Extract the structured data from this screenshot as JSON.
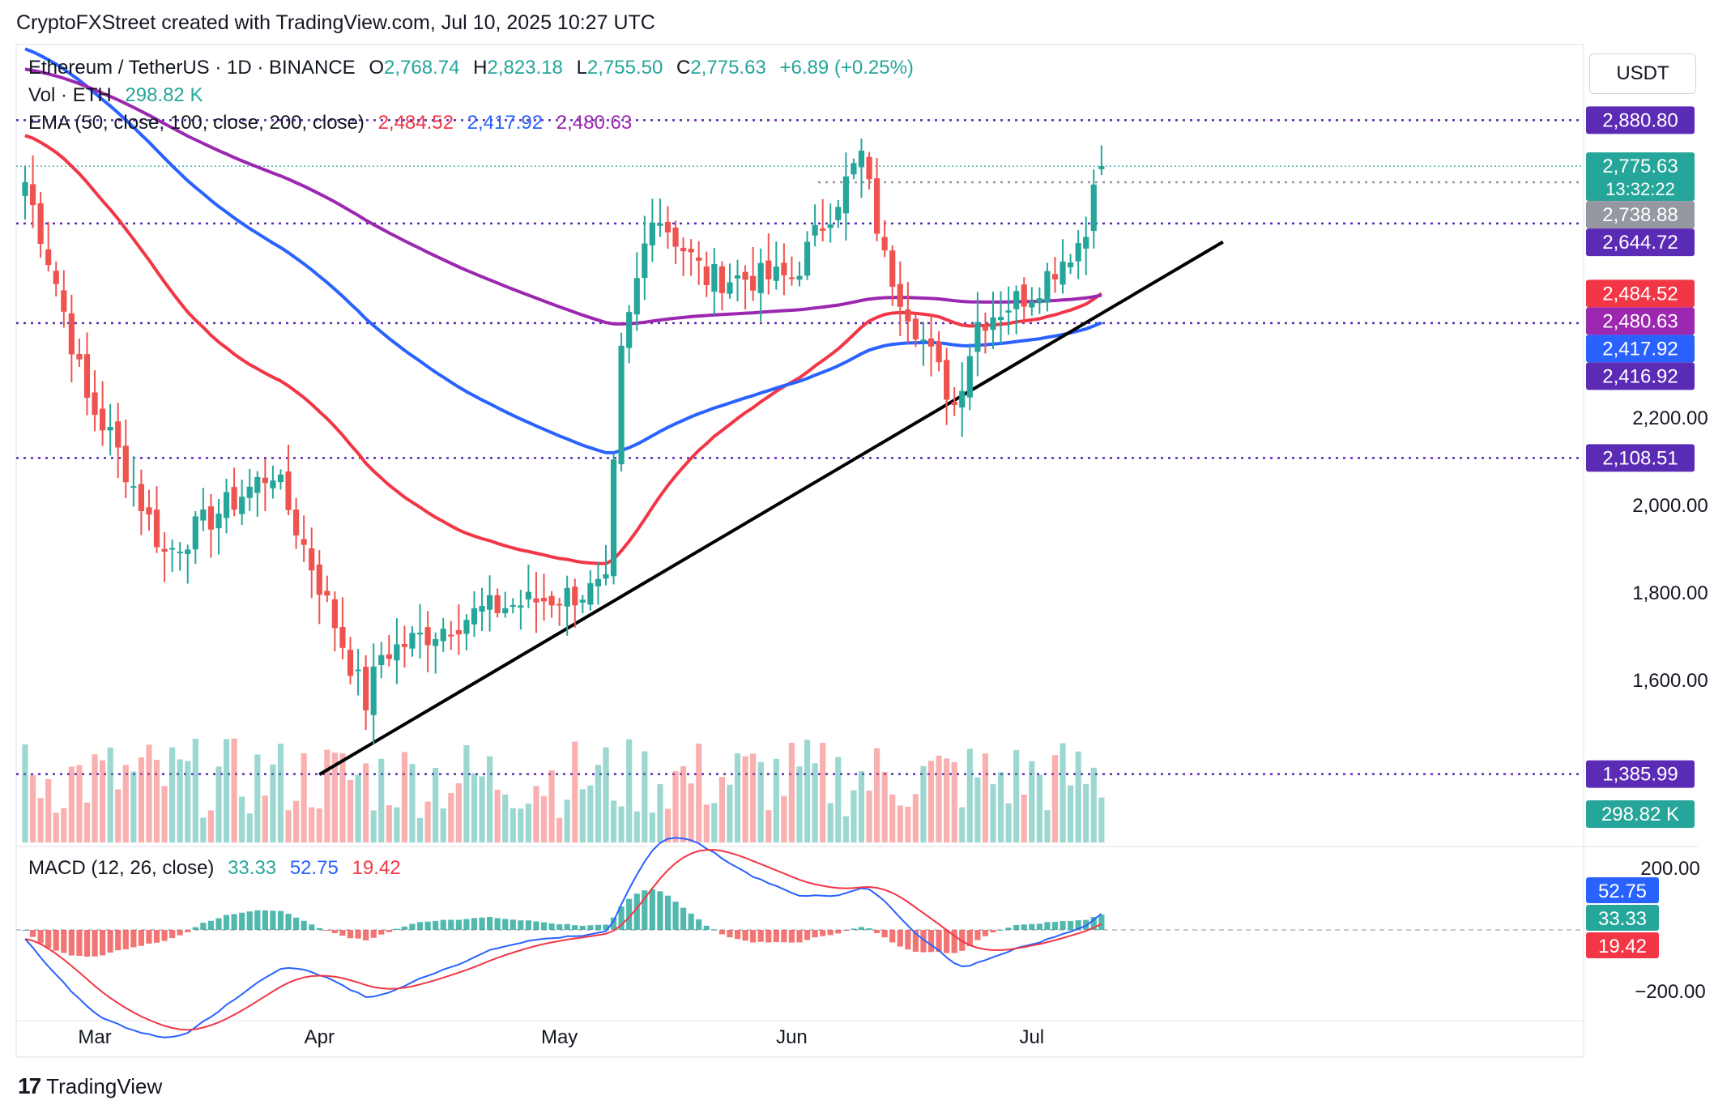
{
  "header": {
    "caption": "CryptoFXStreet created with TradingView.com, Jul 10, 2025 10:27 UTC"
  },
  "legend": {
    "symbol": "Ethereum / TetherUS · 1D · BINANCE",
    "o_label": "O",
    "o_value": "2,768.74",
    "h_label": "H",
    "h_value": "2,823.18",
    "l_label": "L",
    "l_value": "2,755.50",
    "c_label": "C",
    "c_value": "2,775.63",
    "change": "+6.89 (+0.25%)",
    "vol_label": "Vol · ETH",
    "vol_value": "298.82 K",
    "ema_label": "EMA (50, close, 100, close, 200, close)",
    "ema50_value": "2,484.52",
    "ema100_value": "2,417.92",
    "ema200_value": "2,480.63"
  },
  "macd_legend": {
    "label": "MACD (12, 26, close)",
    "hist": "33.33",
    "macd": "52.75",
    "signal": "19.42"
  },
  "unit": "USDT",
  "footer": {
    "brand": "TradingView",
    "logo": "17"
  },
  "colors": {
    "up": "#26a69a",
    "down": "#ef5350",
    "ema50": "#f23645",
    "ema100": "#2962ff",
    "ema200": "#9c27b0",
    "level": "#5b2bb5",
    "trend": "#000000"
  },
  "chart_data": {
    "type": "candlestick",
    "symbol": "ETH/USDT",
    "timeframe": "1D",
    "y_ticks": [
      "2,200.00",
      "2,000.00",
      "1,800.00",
      "1,600.00"
    ],
    "x_ticks": [
      "Mar",
      "Apr",
      "May",
      "Jun",
      "Jul"
    ],
    "price_labels": [
      {
        "value": "2,880.80",
        "kind": "level"
      },
      {
        "value": "2,775.63",
        "kind": "last",
        "sub": "13:32:22"
      },
      {
        "value": "2,738.88",
        "kind": "prior"
      },
      {
        "value": "2,644.72",
        "kind": "level"
      },
      {
        "value": "2,484.52",
        "kind": "ema50"
      },
      {
        "value": "2,480.63",
        "kind": "ema200"
      },
      {
        "value": "2,417.92",
        "kind": "ema100"
      },
      {
        "value": "2,416.92",
        "kind": "level"
      },
      {
        "value": "2,108.51",
        "kind": "level"
      },
      {
        "value": "1,385.99",
        "kind": "level"
      },
      {
        "value": "298.82 K",
        "kind": "volume"
      }
    ],
    "horizontal_levels": [
      2880.8,
      2644.72,
      2416.92,
      2108.51,
      1385.99
    ],
    "trendline": [
      {
        "date": "Apr 1",
        "price": 1385
      },
      {
        "date": "Jul 10",
        "price": 2510
      }
    ],
    "ohlc_anchors": [
      {
        "date": "Feb 20",
        "close": 2740
      },
      {
        "date": "Feb 24",
        "close": 2510
      },
      {
        "date": "Feb 28",
        "close": 2240
      },
      {
        "date": "Mar 3",
        "close": 2160
      },
      {
        "date": "Mar 10",
        "close": 1890
      },
      {
        "date": "Mar 24",
        "close": 2080
      },
      {
        "date": "Apr 1",
        "close": 1820
      },
      {
        "date": "Apr 7",
        "close": 1550
      },
      {
        "date": "Apr 9",
        "close": 1660
      },
      {
        "date": "Apr 22",
        "close": 1760
      },
      {
        "date": "May 7",
        "close": 1810
      },
      {
        "date": "May 9",
        "close": 2340
      },
      {
        "date": "May 13",
        "close": 2680
      },
      {
        "date": "May 20",
        "close": 2520
      },
      {
        "date": "Jun 1",
        "close": 2520
      },
      {
        "date": "Jun 10",
        "close": 2800
      },
      {
        "date": "Jun 13",
        "close": 2560
      },
      {
        "date": "Jun 22",
        "close": 2230
      },
      {
        "date": "Jun 25",
        "close": 2420
      },
      {
        "date": "Jul 1",
        "close": 2490
      },
      {
        "date": "Jul 8",
        "close": 2620
      },
      {
        "date": "Jul 9",
        "close": 2768
      },
      {
        "date": "Jul 10",
        "close": 2775.63
      }
    ],
    "ema": {
      "ema50_last": 2484.52,
      "ema100_last": 2417.92,
      "ema200_last": 2480.63
    },
    "macd": {
      "y_ticks": [
        "200.00",
        "−200.00"
      ],
      "labels": [
        {
          "value": "52.75",
          "kind": "macd"
        },
        {
          "value": "33.33",
          "kind": "hist"
        },
        {
          "value": "19.42",
          "kind": "signal"
        }
      ]
    }
  }
}
